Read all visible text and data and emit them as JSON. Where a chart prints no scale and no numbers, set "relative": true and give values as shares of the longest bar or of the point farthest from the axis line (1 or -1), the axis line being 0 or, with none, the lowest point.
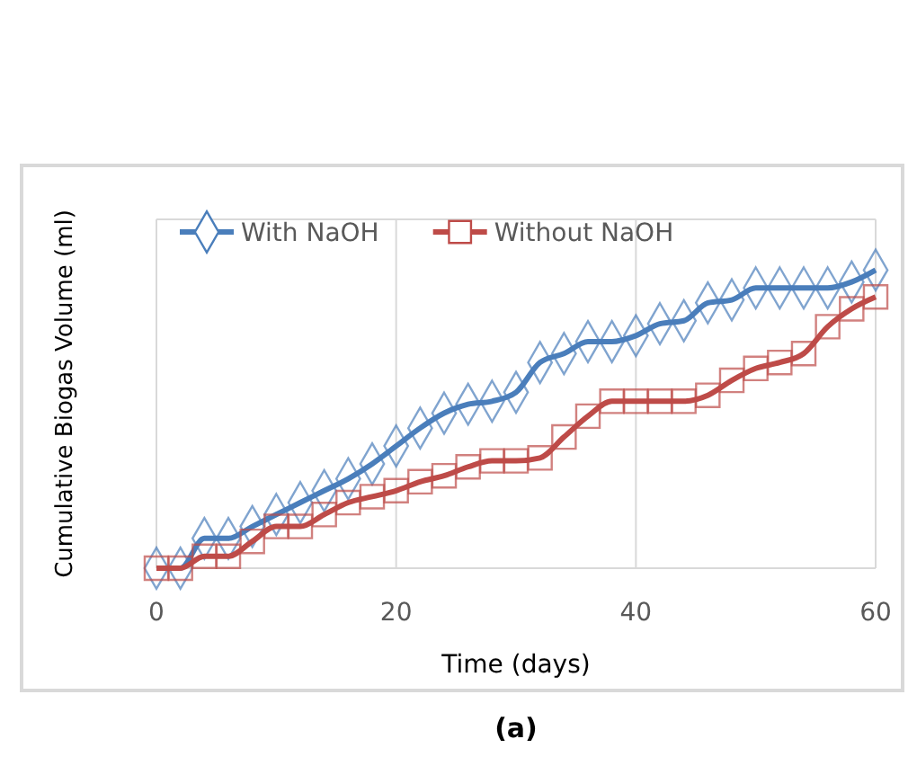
{
  "chart_data": {
    "type": "line",
    "relative": true,
    "xlabel": "Time (days)",
    "ylabel": "Cumulative Biogas Volume (ml)",
    "annotations": [
      "(a)"
    ],
    "x": [
      0,
      2,
      4,
      6,
      8,
      10,
      12,
      14,
      16,
      18,
      20,
      22,
      24,
      26,
      28,
      30,
      32,
      34,
      36,
      38,
      40,
      42,
      44,
      46,
      48,
      50,
      52,
      54,
      56,
      58,
      60
    ],
    "xlim": [
      0,
      60
    ],
    "xticks": [
      0,
      20,
      40,
      60
    ],
    "grid": "x",
    "legend": "top",
    "line_style": "solid",
    "series": [
      {
        "name": "With NaOH",
        "color": "#4a7ebb",
        "marker": "diamond",
        "values": [
          0,
          0,
          0.1,
          0.1,
          0.14,
          0.18,
          0.22,
          0.26,
          0.3,
          0.35,
          0.41,
          0.47,
          0.52,
          0.55,
          0.56,
          0.59,
          0.69,
          0.72,
          0.76,
          0.76,
          0.78,
          0.82,
          0.83,
          0.89,
          0.9,
          0.94,
          0.94,
          0.94,
          0.94,
          0.96,
          1
        ]
      },
      {
        "name": "Without NaOH",
        "color": "#be4b48",
        "marker": "square",
        "values": [
          0,
          0,
          0.04,
          0.04,
          0.09,
          0.14,
          0.14,
          0.18,
          0.22,
          0.24,
          0.26,
          0.29,
          0.31,
          0.34,
          0.36,
          0.36,
          0.37,
          0.44,
          0.51,
          0.56,
          0.56,
          0.56,
          0.56,
          0.58,
          0.63,
          0.67,
          0.69,
          0.72,
          0.81,
          0.87,
          0.91
        ]
      }
    ]
  }
}
